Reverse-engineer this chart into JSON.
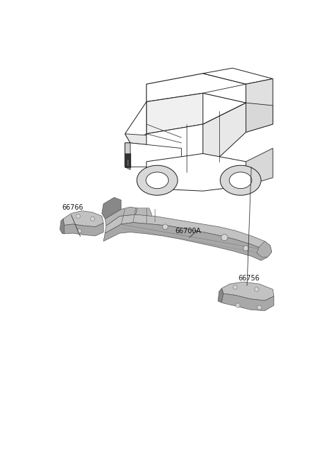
{
  "background_color": "#ffffff",
  "fig_width": 4.8,
  "fig_height": 6.57,
  "dpi": 100,
  "label_fontsize": 7,
  "label_color": "#111111",
  "edge_color": "#444444",
  "light_gray": "#c2c2c2",
  "mid_gray": "#a8a8a8",
  "dark_gray": "#888888",
  "darker_gray": "#707070"
}
